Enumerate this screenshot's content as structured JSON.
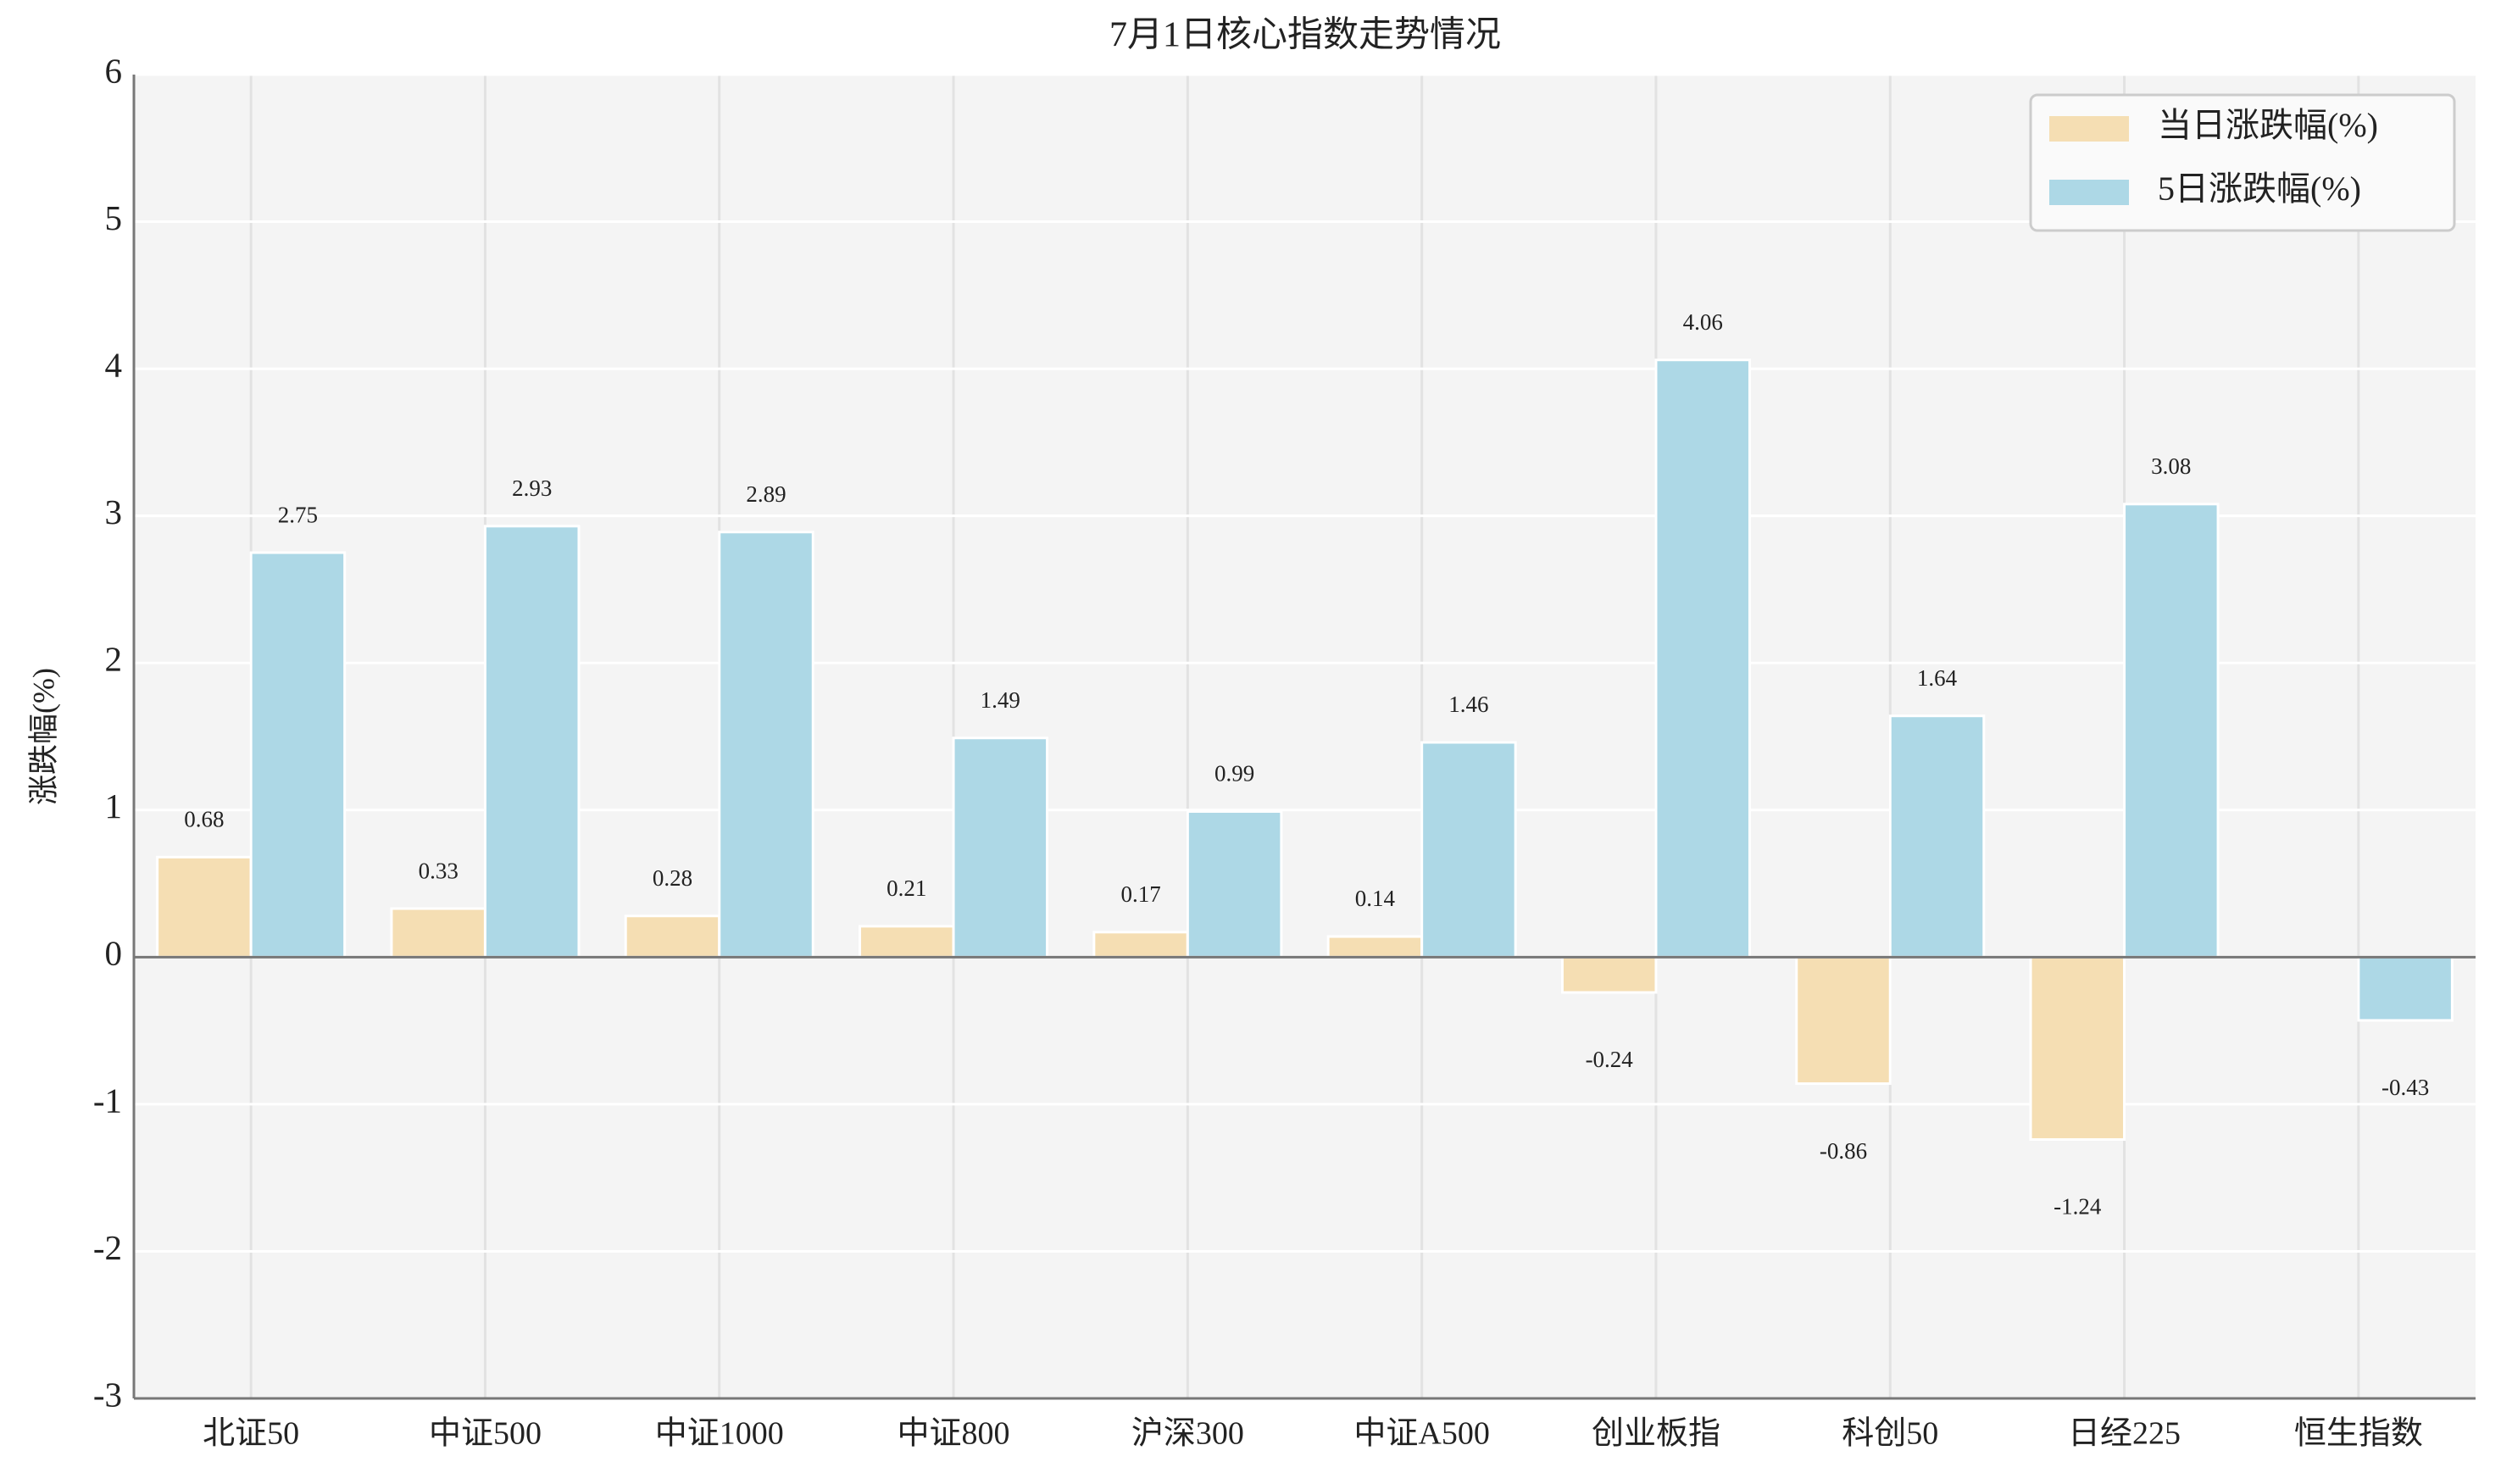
{
  "chart_data": {
    "type": "bar",
    "title": "7月1日核心指数走势情况",
    "y_label": "涨跌幅(%)",
    "categories": [
      "北证50",
      "中证500",
      "中证1000",
      "中证800",
      "沪深300",
      "中证A500",
      "创业板指",
      "科创50",
      "日经225",
      "恒生指数"
    ],
    "series": [
      {
        "name": "当日涨跌幅(%)",
        "color": "#f5deb3",
        "values": [
          0.68,
          0.33,
          0.28,
          0.21,
          0.17,
          0.14,
          -0.24,
          -0.86,
          -1.24,
          null
        ]
      },
      {
        "name": "5日涨跌幅(%)",
        "color": "#add8e6",
        "values": [
          2.75,
          2.93,
          2.89,
          1.49,
          0.99,
          1.46,
          4.06,
          1.64,
          3.08,
          -0.43
        ]
      }
    ],
    "ylim": [
      -3,
      6
    ],
    "yticks": [
      -3,
      -2,
      -1,
      0,
      1,
      2,
      3,
      4,
      5,
      6
    ],
    "grid": true,
    "legend": "upper right"
  }
}
